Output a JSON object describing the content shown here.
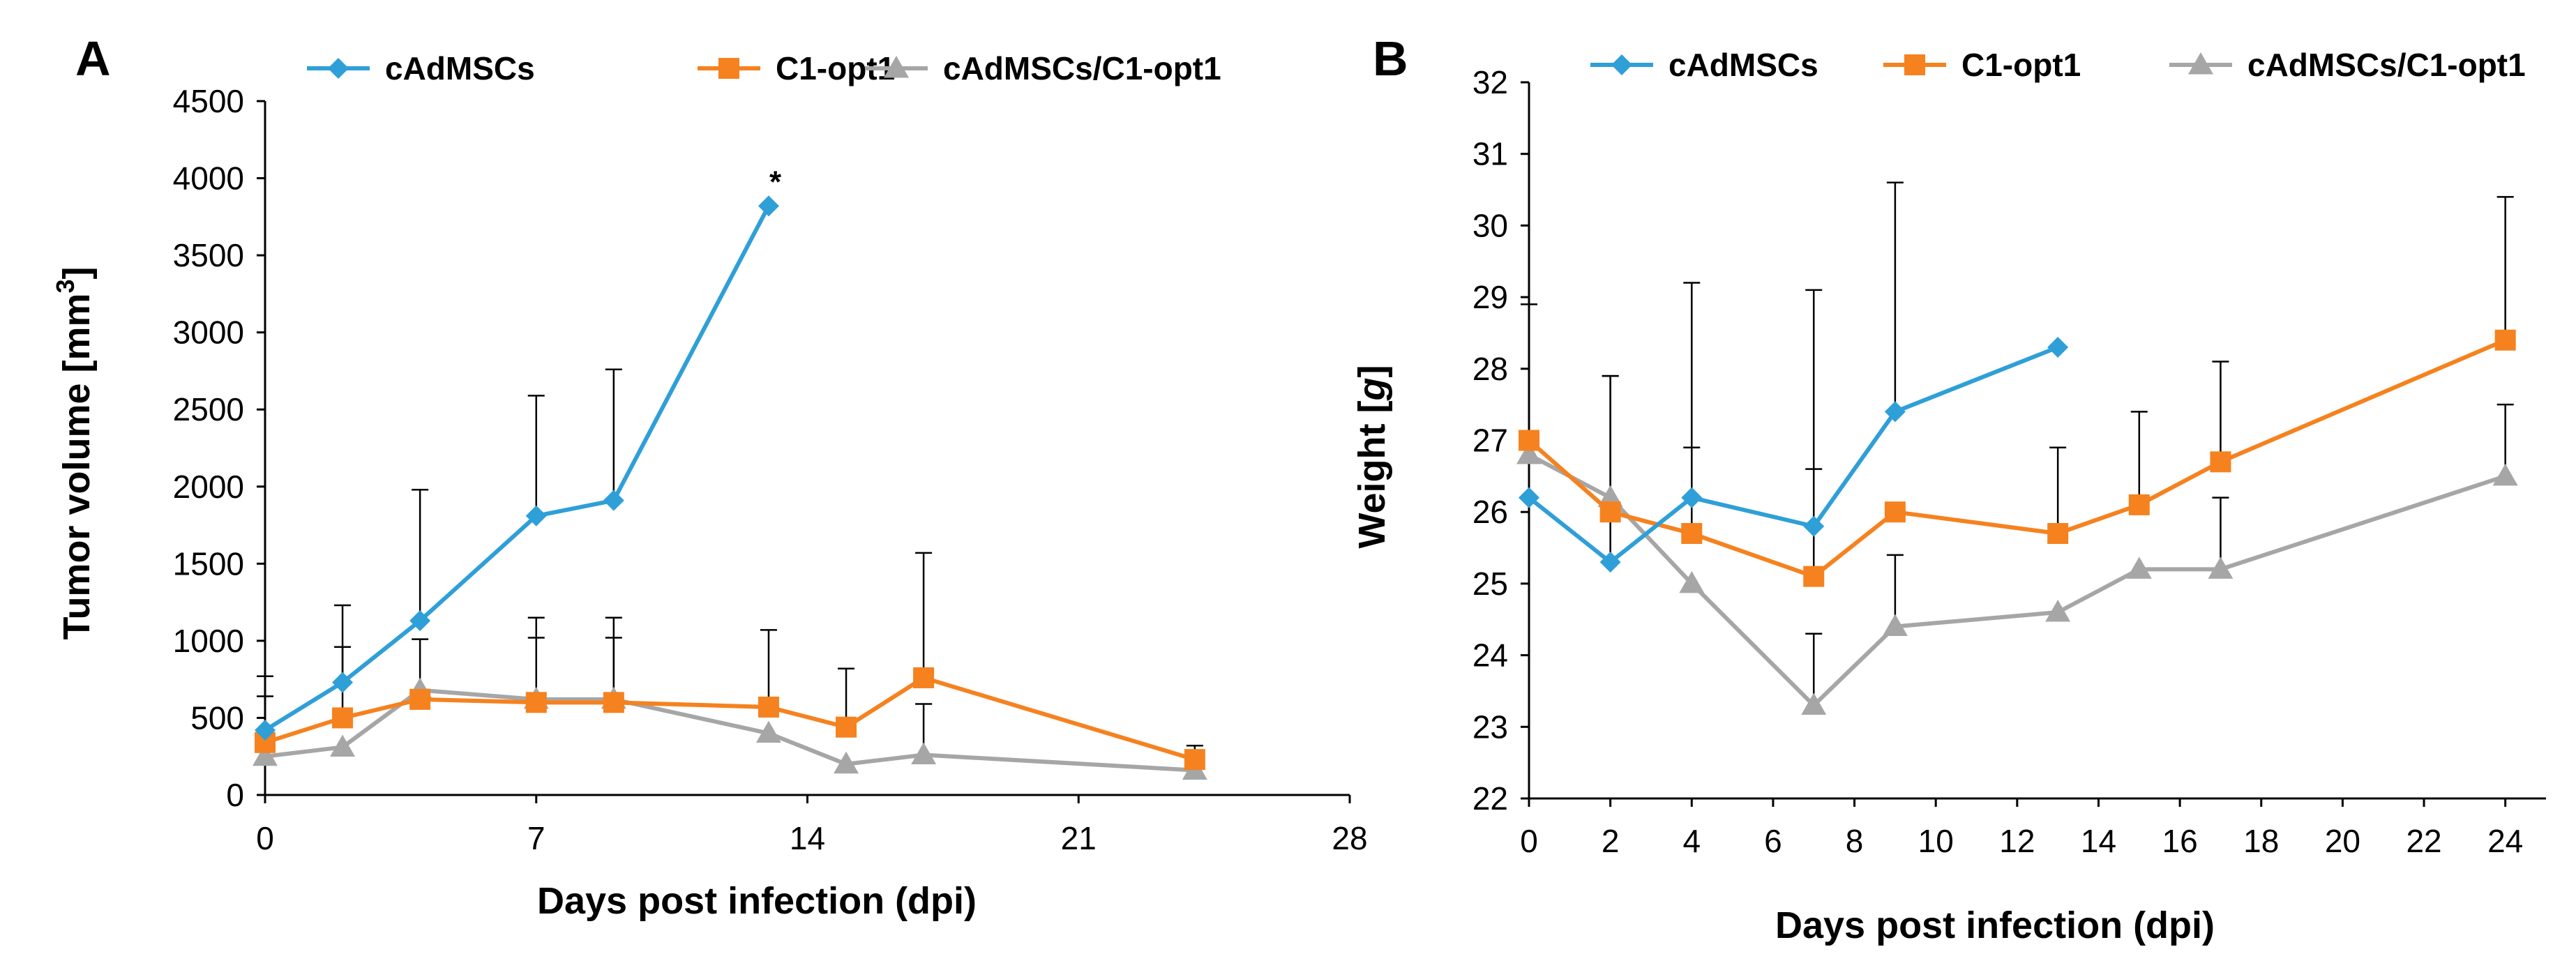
{
  "figure": {
    "colors": {
      "cAdMSCs": "#2f9fd8",
      "C1-opt1": "#f5821f",
      "cAdMSCs/C1-opt1": "#a6a6a6",
      "axis": "#000000",
      "errorbar": "#000000"
    }
  },
  "chart_data": [
    {
      "panel": "A",
      "type": "line",
      "xlabel": "Days post infection (dpi)",
      "ylabel": "Tumor volume [mm³]",
      "ylabel_parts": {
        "main": "Tumor volume [mm",
        "sup": "3",
        "end": "]"
      },
      "xlim": [
        0,
        28
      ],
      "ylim": [
        0,
        4500
      ],
      "xticks": [
        0,
        7,
        14,
        21,
        28
      ],
      "yticks": [
        0,
        500,
        1000,
        1500,
        2000,
        2500,
        3000,
        3500,
        4000,
        4500
      ],
      "grid": false,
      "legend_position": "top",
      "annotations": [
        {
          "text": "*",
          "x": 13.1,
          "y": 3820
        }
      ],
      "series": [
        {
          "name": "cAdMSCs",
          "marker": "diamond",
          "x": [
            0,
            2,
            4,
            7,
            9,
            13
          ],
          "y": [
            420,
            730,
            1130,
            1810,
            1910,
            3820
          ],
          "err": [
            350,
            500,
            850,
            780,
            850,
            0
          ]
        },
        {
          "name": "C1-opt1",
          "marker": "square",
          "x": [
            0,
            2,
            4,
            7,
            9,
            13,
            15,
            17,
            24
          ],
          "y": [
            340,
            500,
            620,
            600,
            600,
            570,
            440,
            760,
            230
          ],
          "err": [
            300,
            460,
            390,
            550,
            550,
            500,
            380,
            810,
            90
          ]
        },
        {
          "name": "cAdMSCs/C1-opt1",
          "marker": "triangle",
          "x": [
            0,
            2,
            4,
            7,
            9,
            13,
            15,
            17,
            24
          ],
          "y": [
            250,
            310,
            680,
            620,
            620,
            400,
            200,
            260,
            160
          ],
          "err": [
            0,
            0,
            0,
            400,
            400,
            0,
            0,
            330,
            0
          ]
        }
      ]
    },
    {
      "panel": "B",
      "type": "line",
      "xlabel": "Days post infection (dpi)",
      "ylabel": "Weight [g]",
      "ylabel_parts": {
        "main": "Weight [",
        "it": "g",
        "end": "]"
      },
      "xlim": [
        0,
        25
      ],
      "ylim": [
        22,
        32
      ],
      "xticks": [
        0,
        2,
        4,
        6,
        8,
        10,
        12,
        14,
        16,
        18,
        20,
        22,
        24
      ],
      "yticks": [
        22,
        23,
        24,
        25,
        26,
        27,
        28,
        29,
        30,
        31,
        32
      ],
      "grid": false,
      "legend_position": "top",
      "annotations": [],
      "series": [
        {
          "name": "cAdMSCs",
          "marker": "diamond",
          "x": [
            0,
            2,
            4,
            7,
            9,
            13
          ],
          "y": [
            26.2,
            25.3,
            26.2,
            25.8,
            27.4,
            28.3
          ],
          "err": [
            2.7,
            2.6,
            3.0,
            3.3,
            3.2,
            0
          ]
        },
        {
          "name": "C1-opt1",
          "marker": "square",
          "x": [
            0,
            2,
            4,
            7,
            9,
            13,
            15,
            17,
            24
          ],
          "y": [
            27.0,
            26.0,
            25.7,
            25.1,
            26.0,
            25.7,
            26.1,
            26.7,
            28.4
          ],
          "err": [
            0,
            1.9,
            1.2,
            1.5,
            0,
            1.2,
            1.3,
            1.4,
            2.0
          ]
        },
        {
          "name": "cAdMSCs/C1-opt1",
          "marker": "triangle",
          "x": [
            0,
            2,
            4,
            7,
            9,
            13,
            15,
            17,
            24
          ],
          "y": [
            26.8,
            26.2,
            25.0,
            23.3,
            24.4,
            24.6,
            25.2,
            25.2,
            26.5
          ],
          "err": [
            0,
            0,
            0,
            1.0,
            1.0,
            0,
            0,
            1.0,
            1.0
          ]
        }
      ]
    }
  ]
}
